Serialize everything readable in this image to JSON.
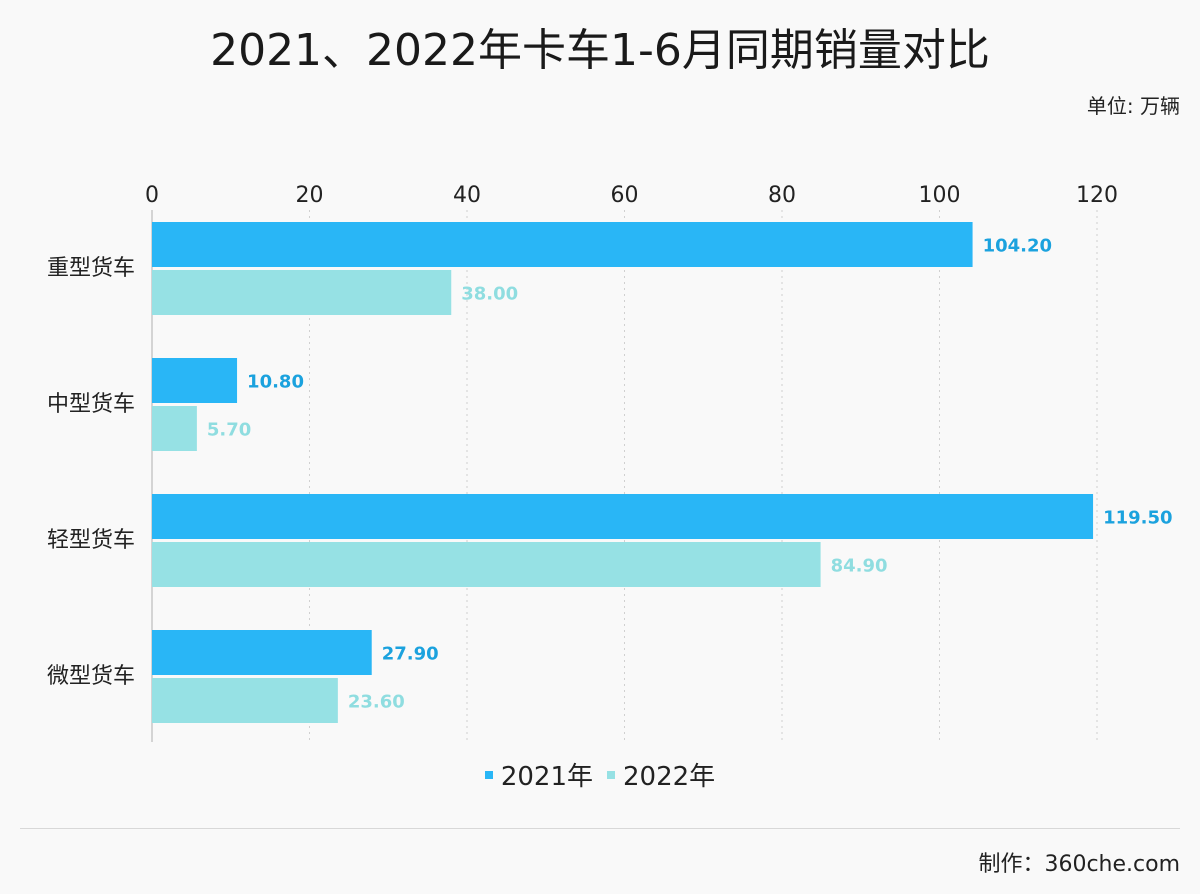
{
  "title": "2021、2022年卡车1-6月同期销量对比",
  "unit": "单位: 万辆",
  "credit": "制作：360che.com",
  "colors": {
    "series_2021": "#29b6f6",
    "series_2022": "#96e1e4",
    "label_2021": "#1ba2de",
    "label_2022": "#8fdde0"
  },
  "chart_data": {
    "type": "bar",
    "orientation": "horizontal",
    "categories": [
      "重型货车",
      "中型货车",
      "轻型货车",
      "微型货车"
    ],
    "series": [
      {
        "name": "2021年",
        "values": [
          104.2,
          10.8,
          119.5,
          27.9
        ],
        "labels": [
          "104.20",
          "10.80",
          "119.50",
          "27.90"
        ]
      },
      {
        "name": "2022年",
        "values": [
          38.0,
          5.7,
          84.9,
          23.6
        ],
        "labels": [
          "38.00",
          "5.70",
          "84.90",
          "23.60"
        ]
      }
    ],
    "xlim": [
      0,
      120
    ],
    "xticks": [
      "0",
      "20",
      "40",
      "60",
      "80",
      "100",
      "120"
    ],
    "grid": true,
    "legend": "bottom-center"
  }
}
